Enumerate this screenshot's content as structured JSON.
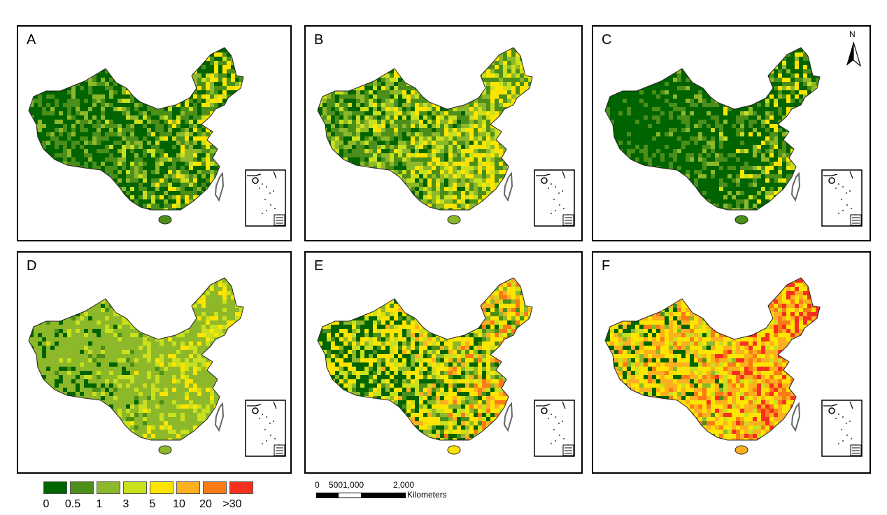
{
  "panels": [
    {
      "label": "A",
      "dist": [
        0.4,
        0.3,
        0.16,
        0.08,
        0.06,
        0.0,
        0.0,
        0.0
      ]
    },
    {
      "label": "B",
      "dist": [
        0.1,
        0.28,
        0.24,
        0.18,
        0.2,
        0.0,
        0.0,
        0.0
      ]
    },
    {
      "label": "C",
      "dist": [
        0.58,
        0.24,
        0.12,
        0.04,
        0.02,
        0.0,
        0.0,
        0.0
      ]
    },
    {
      "label": "D",
      "dist": [
        0.0,
        0.04,
        0.7,
        0.2,
        0.06,
        0.0,
        0.0,
        0.0
      ]
    },
    {
      "label": "E",
      "dist": [
        0.18,
        0.1,
        0.1,
        0.14,
        0.34,
        0.12,
        0.02,
        0.0
      ]
    },
    {
      "label": "F",
      "dist": [
        0.0,
        0.02,
        0.04,
        0.08,
        0.34,
        0.28,
        0.16,
        0.08
      ]
    }
  ],
  "north_arrow": {
    "letter": "N"
  },
  "legend": {
    "colors": [
      "#006400",
      "#4b8f1a",
      "#8db82a",
      "#c9e01e",
      "#fde500",
      "#fdb01f",
      "#fa7b16",
      "#f5311e"
    ],
    "ticks": [
      "0",
      "0.5",
      "1",
      "3",
      "5",
      "10",
      "20",
      ">30"
    ]
  },
  "scale_bar": {
    "labels": [
      "0",
      "5001,000",
      "2,000"
    ],
    "units": "Kilometers"
  }
}
